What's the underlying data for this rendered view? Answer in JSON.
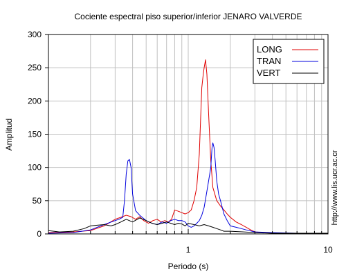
{
  "chart_data": {
    "type": "line",
    "title": "Cociente espectral piso superior/inferior  JENARO VALVERDE",
    "xlabel": "Periodo (s)",
    "ylabel": "Amplitud",
    "xscale": "log",
    "xlim": [
      0.1,
      10
    ],
    "ylim": [
      0,
      300
    ],
    "grid": true,
    "legend_position": "top-right",
    "x_tick_labels": [
      {
        "value": 1,
        "label": "1"
      },
      {
        "value": 10,
        "label": "10"
      }
    ],
    "y_ticks": [
      0,
      50,
      100,
      150,
      200,
      250,
      300
    ],
    "y_tick_labels": [
      "0",
      "50",
      "100",
      "150",
      "200",
      "250",
      "300"
    ],
    "series": [
      {
        "name": "LONG",
        "color": "#e00000",
        "points": [
          [
            0.1,
            2
          ],
          [
            0.15,
            3
          ],
          [
            0.2,
            5
          ],
          [
            0.25,
            12
          ],
          [
            0.3,
            22
          ],
          [
            0.33,
            25
          ],
          [
            0.36,
            28
          ],
          [
            0.39,
            26
          ],
          [
            0.42,
            22
          ],
          [
            0.45,
            26
          ],
          [
            0.48,
            20
          ],
          [
            0.52,
            16
          ],
          [
            0.56,
            20
          ],
          [
            0.6,
            22
          ],
          [
            0.64,
            18
          ],
          [
            0.68,
            20
          ],
          [
            0.72,
            18
          ],
          [
            0.76,
            22
          ],
          [
            0.8,
            36
          ],
          [
            0.85,
            34
          ],
          [
            0.9,
            32
          ],
          [
            0.95,
            30
          ],
          [
            1.0,
            32
          ],
          [
            1.05,
            36
          ],
          [
            1.1,
            50
          ],
          [
            1.15,
            70
          ],
          [
            1.2,
            120
          ],
          [
            1.25,
            220
          ],
          [
            1.28,
            240
          ],
          [
            1.3,
            250
          ],
          [
            1.33,
            262
          ],
          [
            1.36,
            240
          ],
          [
            1.4,
            180
          ],
          [
            1.45,
            110
          ],
          [
            1.5,
            70
          ],
          [
            1.6,
            50
          ],
          [
            1.7,
            42
          ],
          [
            1.8,
            36
          ],
          [
            1.9,
            30
          ],
          [
            2.0,
            25
          ],
          [
            2.2,
            18
          ],
          [
            2.4,
            14
          ],
          [
            2.6,
            10
          ],
          [
            2.8,
            6
          ],
          [
            3.0,
            3
          ],
          [
            4,
            1
          ],
          [
            6,
            1
          ],
          [
            10,
            1
          ]
        ]
      },
      {
        "name": "TRAN",
        "color": "#0000dd",
        "points": [
          [
            0.1,
            1
          ],
          [
            0.15,
            2
          ],
          [
            0.2,
            6
          ],
          [
            0.25,
            14
          ],
          [
            0.3,
            20
          ],
          [
            0.32,
            22
          ],
          [
            0.34,
            25
          ],
          [
            0.35,
            50
          ],
          [
            0.36,
            90
          ],
          [
            0.37,
            110
          ],
          [
            0.38,
            112
          ],
          [
            0.39,
            100
          ],
          [
            0.4,
            60
          ],
          [
            0.42,
            35
          ],
          [
            0.45,
            28
          ],
          [
            0.5,
            20
          ],
          [
            0.55,
            16
          ],
          [
            0.6,
            14
          ],
          [
            0.65,
            18
          ],
          [
            0.7,
            16
          ],
          [
            0.75,
            20
          ],
          [
            0.8,
            22
          ],
          [
            0.85,
            20
          ],
          [
            0.9,
            20
          ],
          [
            0.95,
            18
          ],
          [
            1.0,
            12
          ],
          [
            1.05,
            10
          ],
          [
            1.1,
            12
          ],
          [
            1.15,
            16
          ],
          [
            1.2,
            20
          ],
          [
            1.25,
            28
          ],
          [
            1.3,
            40
          ],
          [
            1.35,
            60
          ],
          [
            1.4,
            80
          ],
          [
            1.45,
            100
          ],
          [
            1.48,
            130
          ],
          [
            1.5,
            137
          ],
          [
            1.53,
            130
          ],
          [
            1.56,
            110
          ],
          [
            1.6,
            80
          ],
          [
            1.65,
            60
          ],
          [
            1.7,
            50
          ],
          [
            1.8,
            30
          ],
          [
            1.9,
            20
          ],
          [
            2.0,
            12
          ],
          [
            2.2,
            10
          ],
          [
            2.4,
            8
          ],
          [
            2.6,
            6
          ],
          [
            3.0,
            3
          ],
          [
            4,
            2
          ],
          [
            6,
            1
          ],
          [
            10,
            1
          ]
        ]
      },
      {
        "name": "VERT",
        "color": "#000000",
        "points": [
          [
            0.1,
            5
          ],
          [
            0.12,
            3
          ],
          [
            0.15,
            4
          ],
          [
            0.18,
            8
          ],
          [
            0.2,
            12
          ],
          [
            0.22,
            13
          ],
          [
            0.25,
            14
          ],
          [
            0.28,
            12
          ],
          [
            0.3,
            14
          ],
          [
            0.33,
            18
          ],
          [
            0.36,
            22
          ],
          [
            0.4,
            18
          ],
          [
            0.45,
            24
          ],
          [
            0.5,
            20
          ],
          [
            0.55,
            16
          ],
          [
            0.6,
            14
          ],
          [
            0.65,
            16
          ],
          [
            0.7,
            18
          ],
          [
            0.75,
            16
          ],
          [
            0.8,
            14
          ],
          [
            0.85,
            16
          ],
          [
            0.9,
            15
          ],
          [
            0.95,
            12
          ],
          [
            1.0,
            16
          ],
          [
            1.1,
            14
          ],
          [
            1.2,
            12
          ],
          [
            1.3,
            14
          ],
          [
            1.4,
            12
          ],
          [
            1.5,
            10
          ],
          [
            1.6,
            8
          ],
          [
            1.7,
            6
          ],
          [
            1.8,
            4
          ],
          [
            2.0,
            4
          ],
          [
            2.5,
            3
          ],
          [
            3,
            2
          ],
          [
            4,
            1
          ],
          [
            6,
            1
          ],
          [
            10,
            1
          ]
        ]
      }
    ]
  },
  "watermark": "http://www.lis.ucr.ac.cr"
}
